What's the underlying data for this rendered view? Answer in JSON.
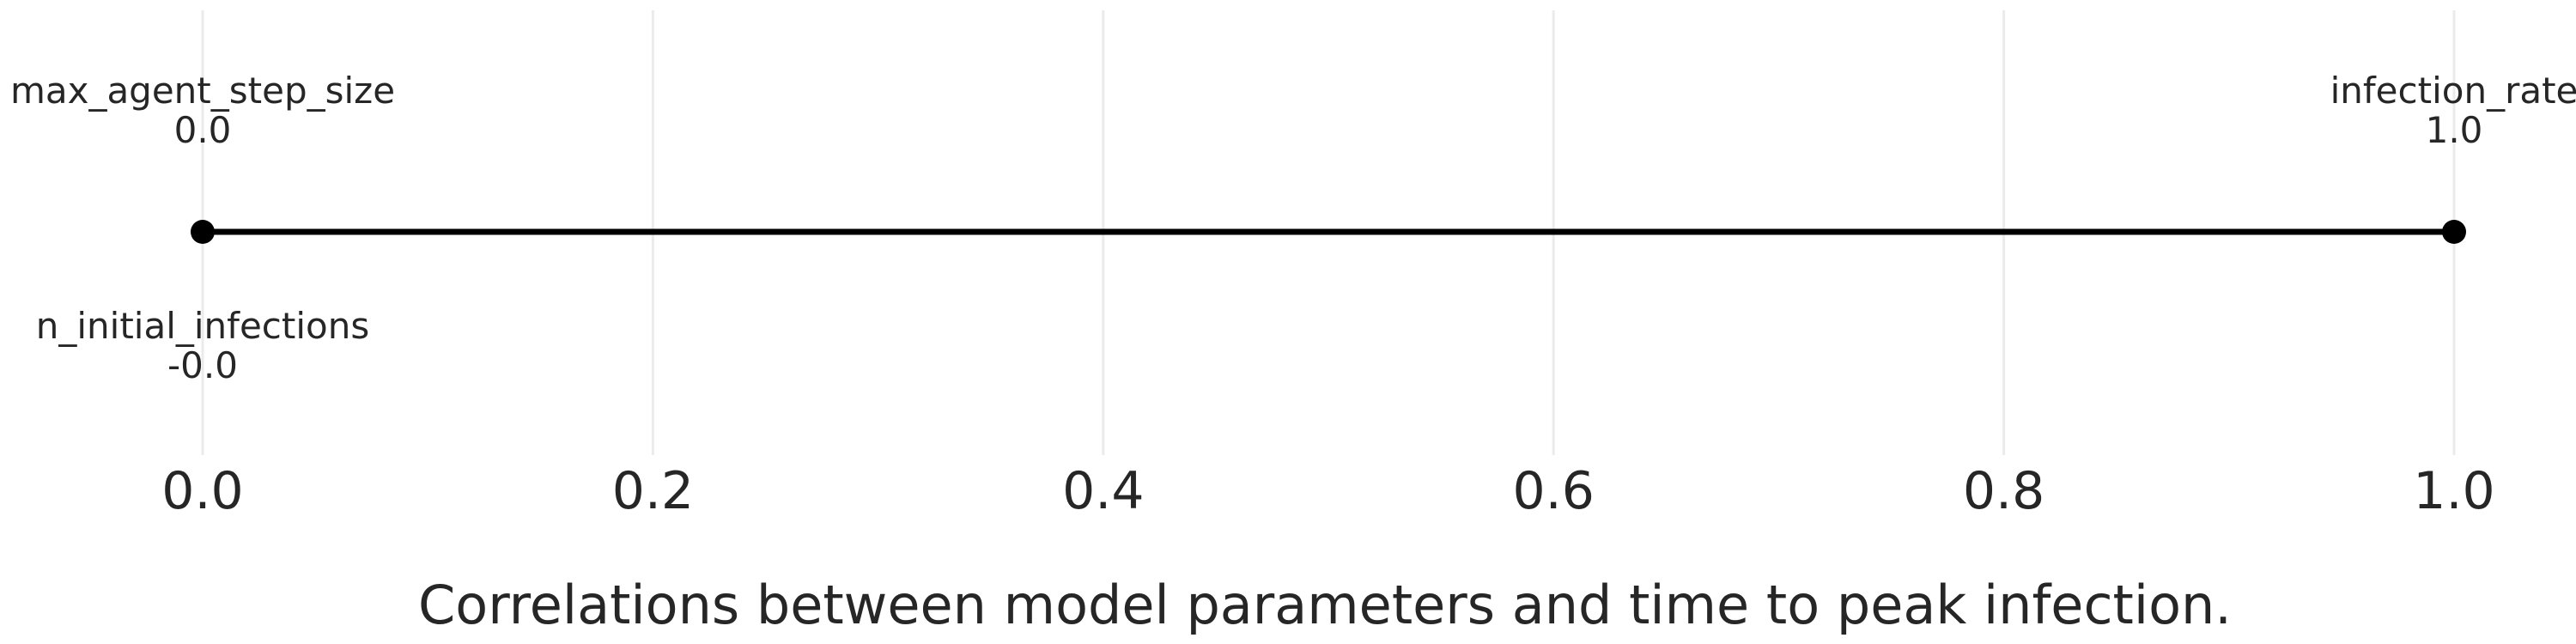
{
  "chart_data": {
    "type": "scatter",
    "title": "Correlations between model parameters and time to peak infection.",
    "xlabel": "",
    "ylabel": "",
    "xlim": [
      0.0,
      1.0
    ],
    "xticks": [
      "0.0",
      "0.2",
      "0.4",
      "0.6",
      "0.8",
      "1.0"
    ],
    "grid": true,
    "range_line": {
      "from": 0.0,
      "to": 1.0,
      "color": "#000000"
    },
    "points": [
      {
        "name": "max_agent_step_size",
        "value": 0.0,
        "label": "0.0",
        "side": "above"
      },
      {
        "name": "n_initial_infections",
        "value": 0.0,
        "label": "-0.0",
        "side": "below"
      },
      {
        "name": "infection_rate",
        "value": 1.0,
        "label": "1.0",
        "side": "above"
      }
    ]
  }
}
